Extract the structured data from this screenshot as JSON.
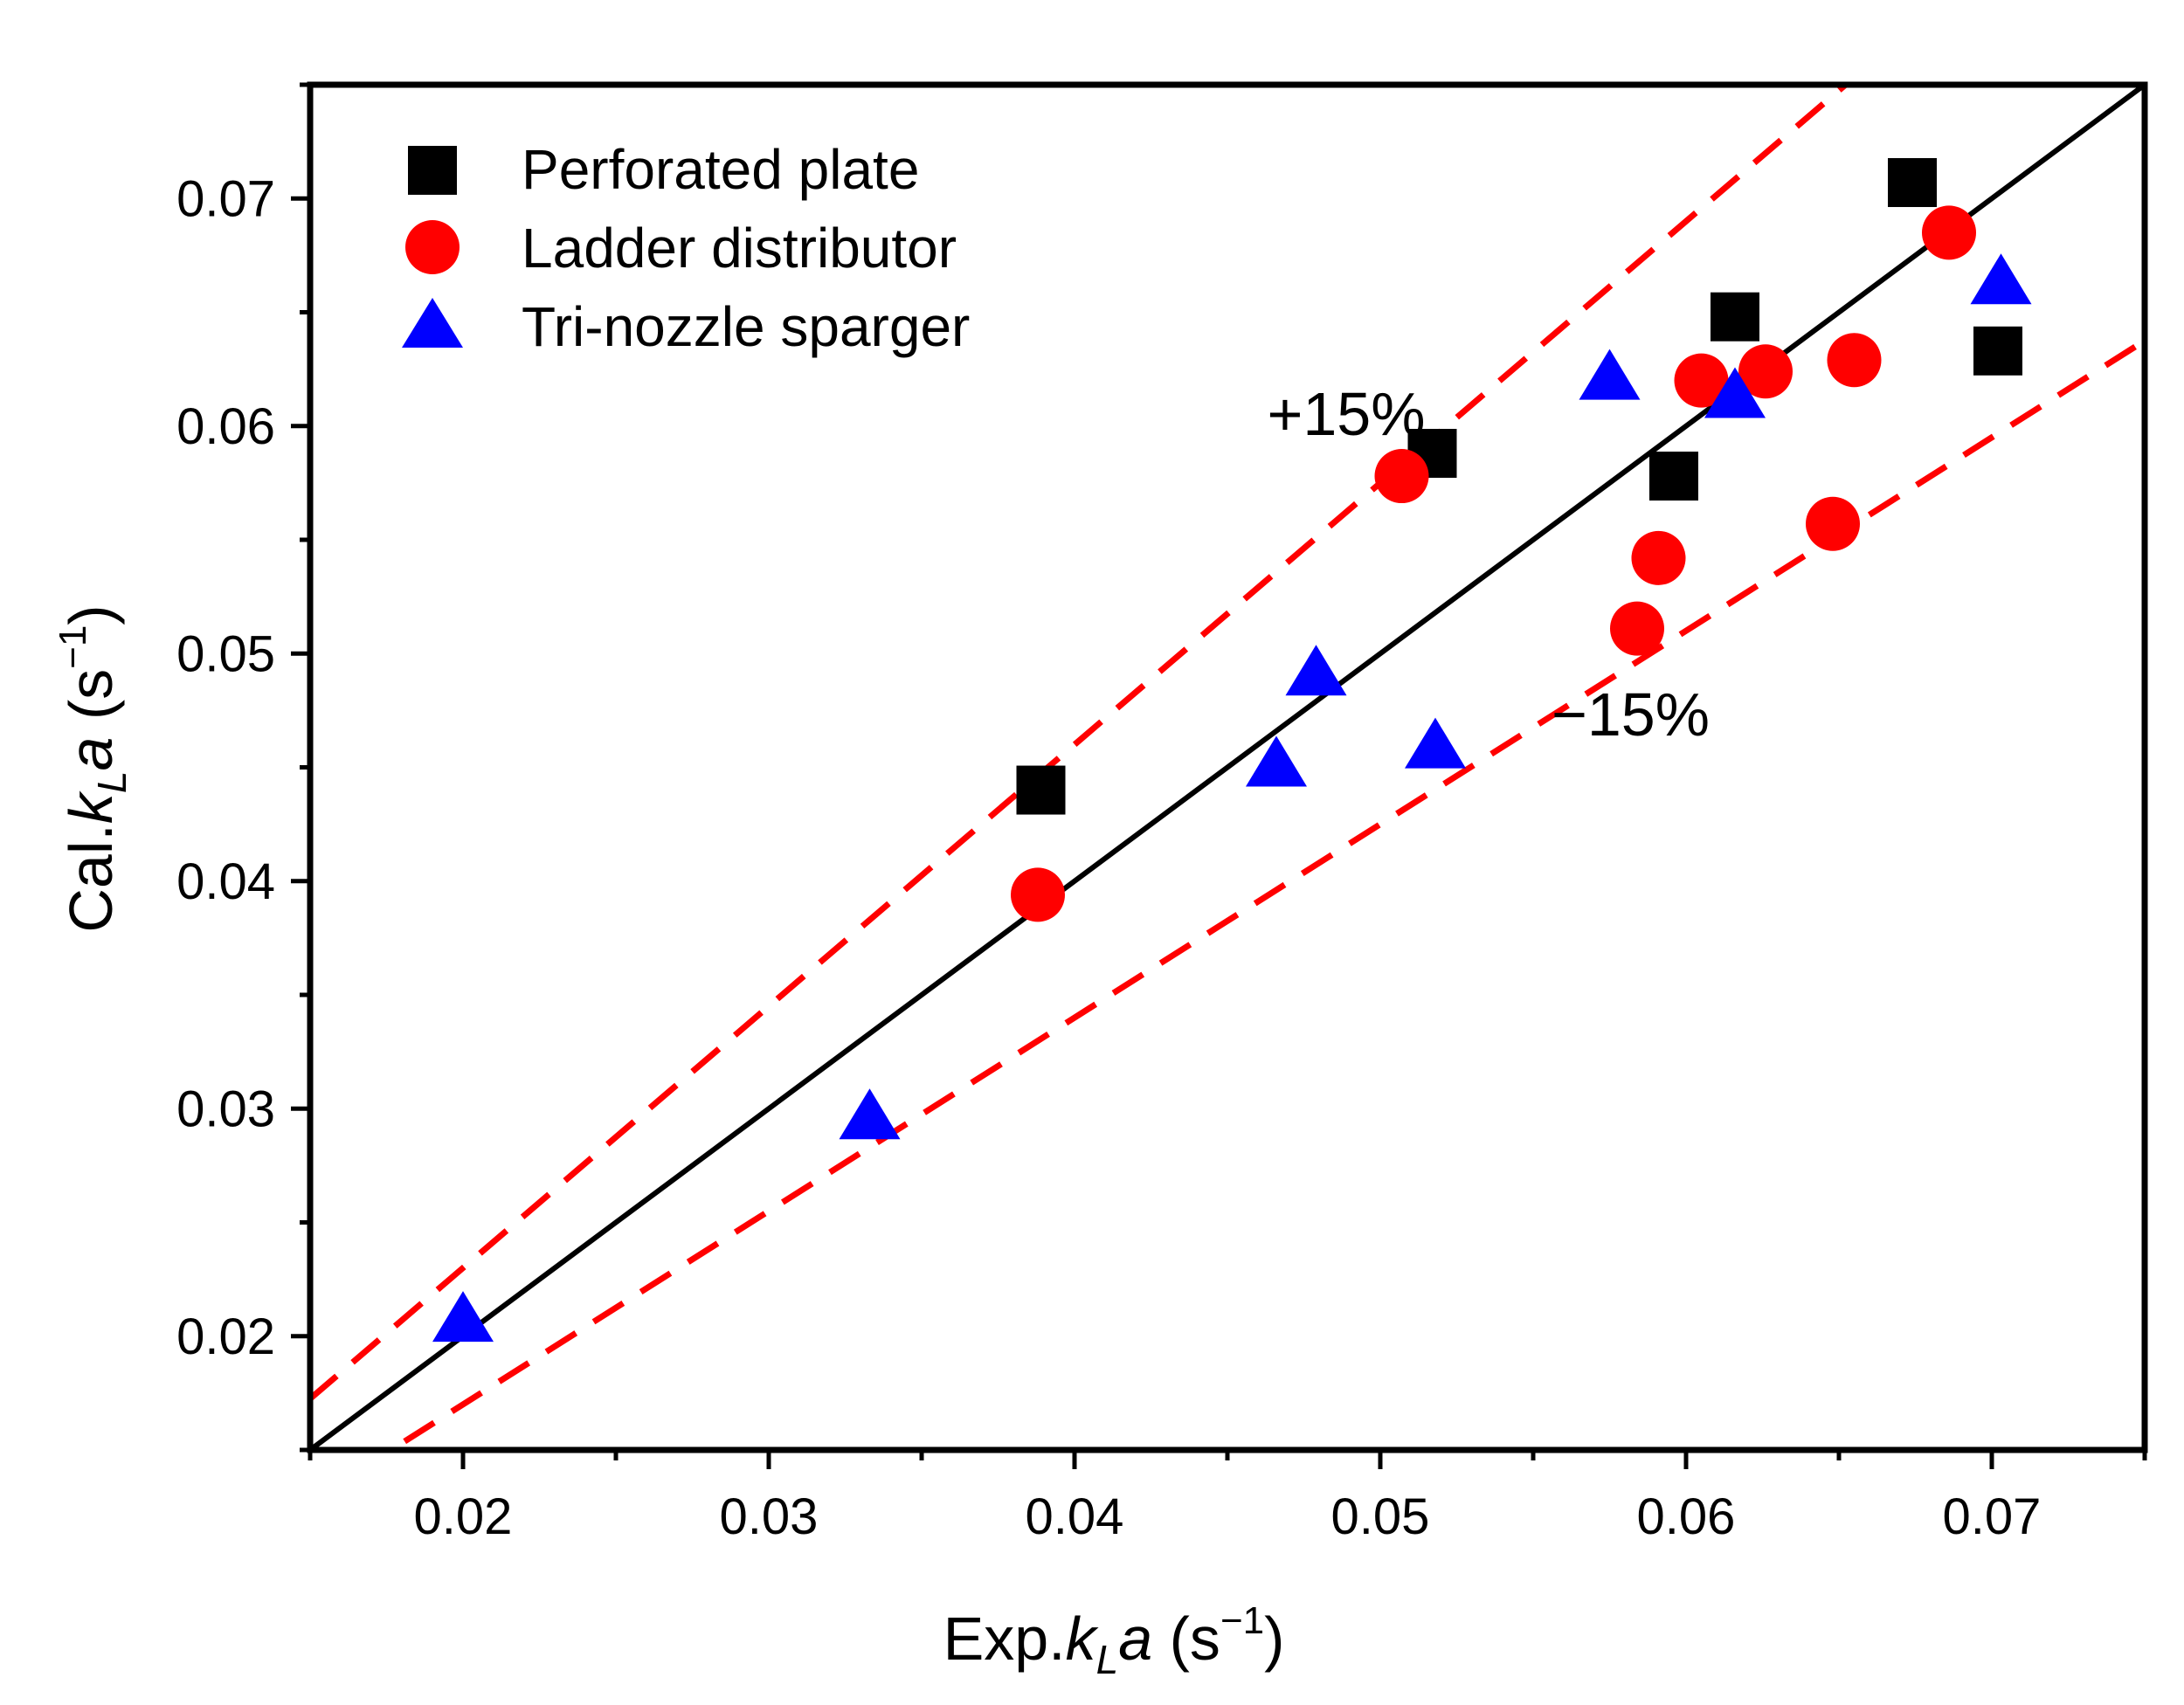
{
  "chart_data": {
    "type": "scatter",
    "title": "",
    "xlabel": {
      "prefix": "Exp.",
      "k": "k",
      "sub": "L",
      "a": "a",
      "unit_open": " (s",
      "sup": "−1",
      "unit_close": ")"
    },
    "ylabel": {
      "prefix": "Cal.",
      "k": "k",
      "sub": "L",
      "a": "a",
      "unit_open": " (s",
      "sup": "−1",
      "unit_close": ")"
    },
    "xlim": [
      0.015,
      0.075
    ],
    "ylim": [
      0.015,
      0.075
    ],
    "xticks": [
      0.02,
      0.03,
      0.04,
      0.05,
      0.06,
      0.07
    ],
    "yticks": [
      0.02,
      0.03,
      0.04,
      0.05,
      0.06,
      0.07
    ],
    "xtick_labels": [
      "0.02",
      "0.03",
      "0.04",
      "0.05",
      "0.06",
      "0.07"
    ],
    "ytick_labels": [
      "0.02",
      "0.03",
      "0.04",
      "0.05",
      "0.06",
      "0.07"
    ],
    "legend_position": "top-left",
    "series": [
      {
        "name": "Perforated plate",
        "marker": "square",
        "color": "#000000",
        "points": [
          [
            0.0389,
            0.044
          ],
          [
            0.0517,
            0.0588
          ],
          [
            0.0596,
            0.0578
          ],
          [
            0.0616,
            0.0648
          ],
          [
            0.0674,
            0.0707
          ],
          [
            0.0702,
            0.0633
          ]
        ]
      },
      {
        "name": "Ladder distributor",
        "marker": "circle",
        "color": "#ff0000",
        "points": [
          [
            0.0388,
            0.0394
          ],
          [
            0.0507,
            0.0578
          ],
          [
            0.0584,
            0.0511
          ],
          [
            0.0591,
            0.0542
          ],
          [
            0.0605,
            0.062
          ],
          [
            0.0626,
            0.0624
          ],
          [
            0.0648,
            0.0557
          ],
          [
            0.0655,
            0.0629
          ],
          [
            0.0686,
            0.0685
          ]
        ]
      },
      {
        "name": "Tri-nozzle sparger",
        "marker": "triangle",
        "color": "#0000ff",
        "points": [
          [
            0.02,
            0.0206
          ],
          [
            0.0333,
            0.0295
          ],
          [
            0.0466,
            0.045
          ],
          [
            0.0479,
            0.049
          ],
          [
            0.0518,
            0.0458
          ],
          [
            0.0575,
            0.062
          ],
          [
            0.0616,
            0.0612
          ],
          [
            0.0703,
            0.0662
          ]
        ]
      }
    ],
    "reference_lines": [
      {
        "name": "parity",
        "slope": 1.0,
        "style": "solid",
        "color": "#000000"
      },
      {
        "name": "+15%",
        "slope": 1.15,
        "style": "dashed",
        "color": "#ff0000"
      },
      {
        "name": "-15%",
        "slope": 0.85,
        "style": "dashed",
        "color": "#ff0000"
      }
    ],
    "annotations": [
      {
        "text": "+15%",
        "x": 0.0463,
        "y": 0.0596
      },
      {
        "text": "−15%",
        "x": 0.0556,
        "y": 0.0464
      }
    ]
  }
}
